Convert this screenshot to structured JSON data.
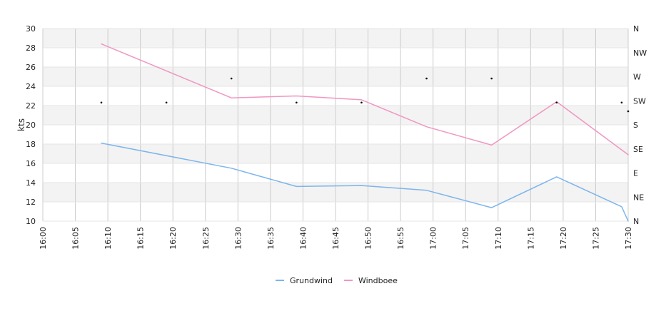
{
  "chart_data": {
    "type": "line",
    "ylabel": "kts",
    "ylim": [
      10,
      30
    ],
    "y_ticks": [
      "10",
      "12",
      "14",
      "16",
      "18",
      "20",
      "22",
      "24",
      "26",
      "28",
      "30"
    ],
    "x_ticks": [
      "16:00",
      "16:05",
      "16:10",
      "16:15",
      "16:20",
      "16:25",
      "16:30",
      "16:35",
      "16:40",
      "16:45",
      "16:50",
      "16:55",
      "17:00",
      "17:05",
      "17:10",
      "17:15",
      "17:20",
      "17:25",
      "17:30"
    ],
    "xlim": [
      "16:00",
      "17:30"
    ],
    "direction_axis": {
      "labels": [
        "N",
        "NE",
        "E",
        "SE",
        "S",
        "SW",
        "W",
        "NW",
        "N"
      ]
    },
    "series": [
      {
        "name": "Grundwind",
        "color": "#7cb5ec",
        "points": [
          {
            "x": "16:09",
            "y": 18.1
          },
          {
            "x": "16:29",
            "y": 15.5
          },
          {
            "x": "16:39",
            "y": 13.6
          },
          {
            "x": "16:49",
            "y": 13.7
          },
          {
            "x": "16:59",
            "y": 13.2
          },
          {
            "x": "17:09",
            "y": 11.4
          },
          {
            "x": "17:19",
            "y": 14.6
          },
          {
            "x": "17:29",
            "y": 11.5
          },
          {
            "x": "17:30",
            "y": 10.0
          }
        ]
      },
      {
        "name": "Windboee",
        "color": "#f096c1",
        "points": [
          {
            "x": "16:09",
            "y": 28.4
          },
          {
            "x": "16:29",
            "y": 22.8
          },
          {
            "x": "16:39",
            "y": 23.0
          },
          {
            "x": "16:49",
            "y": 22.6
          },
          {
            "x": "16:59",
            "y": 19.8
          },
          {
            "x": "17:09",
            "y": 17.9
          },
          {
            "x": "17:19",
            "y": 22.4
          },
          {
            "x": "17:29",
            "y": 17.4
          },
          {
            "x": "17:30",
            "y": 16.9
          }
        ]
      }
    ],
    "wind_direction": [
      {
        "x": "16:09",
        "dir": "SW"
      },
      {
        "x": "16:19",
        "dir": "SW"
      },
      {
        "x": "16:29",
        "dir": "W"
      },
      {
        "x": "16:39",
        "dir": "SW"
      },
      {
        "x": "16:49",
        "dir": "SW"
      },
      {
        "x": "16:59",
        "dir": "W"
      },
      {
        "x": "17:09",
        "dir": "W"
      },
      {
        "x": "17:19",
        "dir": "SW"
      },
      {
        "x": "17:29",
        "dir": "SW"
      },
      {
        "x": "17:30",
        "dir": "S"
      }
    ],
    "grid": true,
    "legend_position": "bottom"
  }
}
